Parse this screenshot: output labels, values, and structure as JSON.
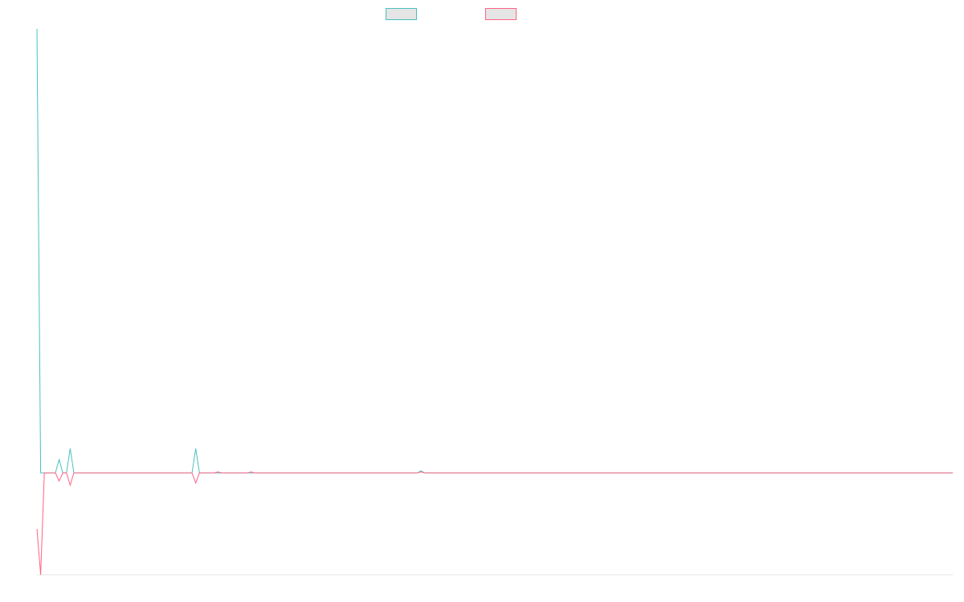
{
  "chart_data": {
    "type": "line",
    "title": "",
    "xlabel": "",
    "ylabel": "",
    "grid": false,
    "legend_placement": "top-center",
    "x": [
      0,
      1,
      2,
      3,
      4,
      5,
      6,
      7,
      8,
      9,
      10,
      11,
      12,
      13,
      14,
      15,
      16,
      17,
      18,
      19,
      20,
      21,
      22,
      23,
      24,
      25,
      26,
      27,
      28,
      29,
      30,
      31,
      32,
      33,
      34,
      35,
      36,
      37,
      38,
      39,
      40,
      41,
      42,
      43,
      44,
      45,
      46,
      47,
      48,
      49,
      50,
      51,
      52,
      53,
      54,
      55,
      56,
      57,
      58,
      59,
      60,
      61,
      62,
      63,
      64,
      65,
      66,
      67,
      68,
      69,
      70,
      71,
      72,
      73,
      74,
      75,
      76,
      77,
      78,
      79,
      80,
      81,
      82,
      83,
      84,
      85,
      86,
      87,
      88,
      89,
      90,
      91,
      92,
      93,
      94,
      95,
      96,
      97,
      98,
      99,
      100,
      101,
      102,
      103,
      104,
      105,
      106,
      107,
      108,
      109,
      110,
      111,
      112,
      113,
      114,
      115,
      116,
      117,
      118,
      119,
      120,
      121,
      122,
      123,
      124,
      125,
      126,
      127,
      128,
      129,
      130,
      131,
      132,
      133,
      134,
      135,
      136,
      137,
      138,
      139,
      140,
      141,
      142,
      143,
      144,
      145,
      146,
      147,
      148,
      149,
      150,
      151,
      152,
      153,
      154,
      155,
      156,
      157,
      158,
      159,
      160,
      161,
      162,
      163,
      164,
      165,
      166,
      167,
      168,
      169,
      170,
      171,
      172,
      173,
      174,
      175,
      176,
      177,
      178,
      179,
      180,
      181,
      182,
      183,
      184,
      185,
      186,
      187,
      188,
      189,
      190,
      191,
      192,
      193,
      194,
      195,
      196,
      197,
      198,
      199,
      200,
      201,
      202,
      203,
      204,
      205,
      206,
      207,
      208,
      209,
      210,
      211,
      212,
      213,
      214,
      215,
      216,
      217,
      218,
      219,
      220,
      221,
      222,
      223,
      224,
      225,
      226,
      227,
      228,
      229,
      230,
      231,
      232,
      233,
      234,
      235,
      236,
      237,
      238,
      239,
      240,
      241,
      242,
      243,
      244,
      245,
      246,
      247,
      248
    ],
    "ylim": [
      -100,
      436
    ],
    "series": [
      {
        "name": "",
        "color": "#4bc0c0",
        "values": [
          436,
          0,
          0,
          0,
          0,
          0,
          13,
          0,
          0,
          24,
          0,
          0,
          0,
          0,
          0,
          0,
          0,
          0,
          0,
          0,
          0,
          0,
          0,
          0,
          0,
          0,
          0,
          0,
          0,
          0,
          0,
          0,
          0,
          0,
          0,
          0,
          0,
          0,
          0,
          0,
          0,
          0,
          0,
          24,
          0,
          0,
          0,
          0,
          0,
          0,
          0,
          0,
          0,
          0,
          0,
          0,
          0,
          0,
          0,
          0,
          0,
          0,
          0,
          0,
          0,
          0,
          0,
          0,
          0,
          0,
          0,
          0,
          0,
          0,
          0,
          0,
          0,
          0,
          0,
          0,
          0,
          0,
          0,
          0,
          0,
          0,
          0,
          0,
          0,
          0,
          0,
          0,
          0,
          0,
          0,
          0,
          0,
          0,
          0,
          0,
          0,
          0,
          0,
          0,
          2,
          0,
          0,
          0,
          0,
          0,
          0,
          0,
          0,
          0,
          0,
          0,
          0,
          0,
          0,
          0,
          0,
          0,
          0,
          0,
          0,
          0,
          0,
          0,
          0,
          0,
          0,
          0,
          0,
          0,
          0,
          0,
          0,
          0,
          0,
          0,
          0,
          0,
          0,
          0,
          0,
          0,
          0,
          0,
          0,
          0,
          0,
          0,
          0,
          0,
          0,
          0,
          0,
          0,
          0,
          0,
          0,
          0,
          0,
          0,
          0,
          0,
          0,
          0,
          0,
          0,
          0,
          0,
          0,
          0,
          0,
          0,
          0,
          0,
          0,
          0,
          0,
          0,
          0,
          0,
          0,
          0,
          0,
          0,
          0,
          0,
          0,
          0,
          0,
          0,
          0,
          0,
          0,
          0,
          0,
          0,
          0,
          0,
          0,
          0,
          0,
          0,
          0,
          0,
          0,
          0,
          0,
          0,
          0,
          0,
          0,
          0,
          0,
          0,
          0,
          0,
          0,
          0,
          0,
          0,
          0,
          0,
          0,
          0,
          0,
          0,
          0,
          0,
          0,
          0,
          0,
          0,
          0,
          0,
          0,
          0,
          0,
          0,
          0,
          0,
          0,
          0,
          0,
          0,
          0
        ]
      },
      {
        "name": "",
        "color": "#ff6384",
        "values": [
          -55,
          -100,
          0,
          0,
          0,
          0,
          -8,
          0,
          0,
          -12,
          0,
          0,
          0,
          0,
          0,
          0,
          0,
          0,
          0,
          0,
          0,
          0,
          0,
          0,
          0,
          0,
          0,
          0,
          0,
          0,
          0,
          0,
          0,
          0,
          0,
          0,
          0,
          0,
          0,
          0,
          0,
          0,
          0,
          -10,
          0,
          0,
          0,
          0,
          0,
          1,
          0,
          0,
          0,
          0,
          0,
          0,
          0,
          0,
          1,
          0,
          0,
          0,
          0,
          0,
          0,
          0,
          0,
          0,
          0,
          0,
          0,
          0,
          0,
          0,
          0,
          0,
          0,
          0,
          0,
          0,
          0,
          0,
          0,
          0,
          0,
          0,
          0,
          0,
          0,
          0,
          0,
          0,
          0,
          0,
          0,
          0,
          0,
          0,
          0,
          0,
          0,
          0,
          0,
          0,
          1,
          0,
          0,
          0,
          0,
          0,
          0,
          0,
          0,
          0,
          0,
          0,
          0,
          0,
          0,
          0,
          0,
          0,
          0,
          0,
          0,
          0,
          0,
          0,
          0,
          0,
          0,
          0,
          0,
          0,
          0,
          0,
          0,
          0,
          0,
          0,
          0,
          0,
          0,
          0,
          0,
          0,
          0,
          0,
          0,
          0,
          0,
          0,
          0,
          0,
          0,
          0,
          0,
          0,
          0,
          0,
          0,
          0,
          0,
          0,
          0,
          0,
          0,
          0,
          0,
          0,
          0,
          0,
          0,
          0,
          0,
          0,
          0,
          0,
          0,
          0,
          0,
          0,
          0,
          0,
          0,
          0,
          0,
          0,
          0,
          0,
          0,
          0,
          0,
          0,
          0,
          0,
          0,
          0,
          0,
          0,
          0,
          0,
          0,
          0,
          0,
          0,
          0,
          0,
          0,
          0,
          0,
          0,
          0,
          0,
          0,
          0,
          0,
          0,
          0,
          0,
          0,
          0,
          0,
          0,
          0,
          0,
          0,
          0,
          0,
          0,
          0,
          0,
          0,
          0,
          0,
          0,
          0,
          0,
          0,
          0,
          0,
          0,
          0,
          0,
          0,
          0,
          0,
          0,
          0
        ]
      }
    ]
  }
}
